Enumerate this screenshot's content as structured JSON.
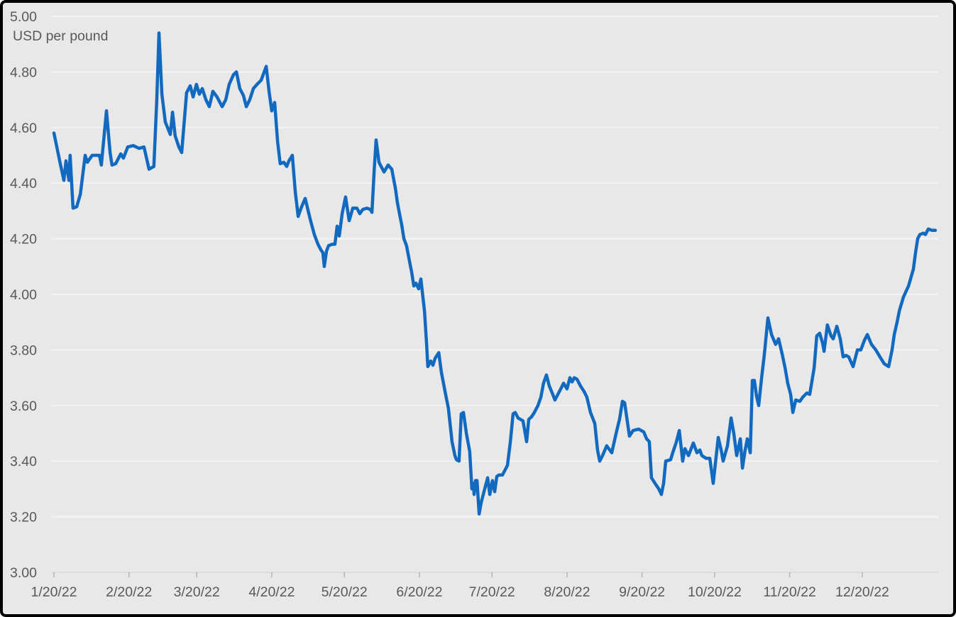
{
  "chart_data": {
    "type": "line",
    "title": "",
    "ylabel": "USD per pound",
    "xlabel": "",
    "grid": true,
    "legend": "none",
    "ylim": [
      3.0,
      5.0
    ],
    "x_axis_kind": "date",
    "x_range_days": [
      0,
      365.5
    ],
    "y_ticks": [
      {
        "label": "5.00",
        "value": 5.0
      },
      {
        "label": "4.80",
        "value": 4.8
      },
      {
        "label": "4.60",
        "value": 4.6
      },
      {
        "label": "4.40",
        "value": 4.4
      },
      {
        "label": "4.20",
        "value": 4.2
      },
      {
        "label": "4.00",
        "value": 4.0
      },
      {
        "label": "3.80",
        "value": 3.8
      },
      {
        "label": "3.60",
        "value": 3.6
      },
      {
        "label": "3.40",
        "value": 3.4
      },
      {
        "label": "3.20",
        "value": 3.2
      },
      {
        "label": "3.00",
        "value": 3.0
      }
    ],
    "x_ticks": [
      {
        "label": "1/20/22",
        "day": 0
      },
      {
        "label": "2/20/22",
        "day": 31
      },
      {
        "label": "3/20/22",
        "day": 59
      },
      {
        "label": "4/20/22",
        "day": 90
      },
      {
        "label": "5/20/22",
        "day": 120
      },
      {
        "label": "6/20/22",
        "day": 151
      },
      {
        "label": "7/20/22",
        "day": 181
      },
      {
        "label": "8/20/22",
        "day": 212
      },
      {
        "label": "9/20/22",
        "day": 243
      },
      {
        "label": "10/20/22",
        "day": 273
      },
      {
        "label": "11/20/22",
        "day": 304
      },
      {
        "label": "12/20/22",
        "day": 334
      }
    ],
    "series": [
      {
        "name": "USD per pound",
        "color": "#1169c0",
        "points": [
          [
            0,
            4.58
          ],
          [
            2.6,
            4.47
          ],
          [
            4.1,
            4.41
          ],
          [
            5,
            4.48
          ],
          [
            6.2,
            4.41
          ],
          [
            6.7,
            4.5
          ],
          [
            7.9,
            4.31
          ],
          [
            9.4,
            4.315
          ],
          [
            10.9,
            4.36
          ],
          [
            12.9,
            4.5
          ],
          [
            13.8,
            4.475
          ],
          [
            15.8,
            4.5
          ],
          [
            18.8,
            4.5
          ],
          [
            19.6,
            4.465
          ],
          [
            21.7,
            4.66
          ],
          [
            23.2,
            4.51
          ],
          [
            24,
            4.465
          ],
          [
            25.5,
            4.47
          ],
          [
            27.6,
            4.505
          ],
          [
            28.7,
            4.49
          ],
          [
            30.5,
            4.53
          ],
          [
            32.8,
            4.535
          ],
          [
            35.2,
            4.525
          ],
          [
            37.2,
            4.53
          ],
          [
            39.3,
            4.45
          ],
          [
            41.3,
            4.46
          ],
          [
            42.5,
            4.7
          ],
          [
            43.4,
            4.94
          ],
          [
            44.6,
            4.72
          ],
          [
            46,
            4.62
          ],
          [
            48.1,
            4.575
          ],
          [
            49,
            4.655
          ],
          [
            50.1,
            4.57
          ],
          [
            51.6,
            4.53
          ],
          [
            52.8,
            4.51
          ],
          [
            54.8,
            4.725
          ],
          [
            56.3,
            4.75
          ],
          [
            57.5,
            4.71
          ],
          [
            58.9,
            4.755
          ],
          [
            60.1,
            4.72
          ],
          [
            61.3,
            4.74
          ],
          [
            62.8,
            4.7
          ],
          [
            64.2,
            4.675
          ],
          [
            65.7,
            4.73
          ],
          [
            67.4,
            4.71
          ],
          [
            69.5,
            4.675
          ],
          [
            71,
            4.7
          ],
          [
            72.4,
            4.755
          ],
          [
            74.2,
            4.79
          ],
          [
            75.4,
            4.8
          ],
          [
            76.8,
            4.74
          ],
          [
            78.3,
            4.715
          ],
          [
            79.5,
            4.675
          ],
          [
            80.9,
            4.7
          ],
          [
            82.4,
            4.74
          ],
          [
            83.9,
            4.755
          ],
          [
            85.6,
            4.77
          ],
          [
            87.7,
            4.82
          ],
          [
            88.9,
            4.73
          ],
          [
            90,
            4.66
          ],
          [
            91.2,
            4.69
          ],
          [
            92.4,
            4.55
          ],
          [
            93.5,
            4.47
          ],
          [
            95,
            4.475
          ],
          [
            96.2,
            4.46
          ],
          [
            97.1,
            4.48
          ],
          [
            98.5,
            4.5
          ],
          [
            99.7,
            4.37
          ],
          [
            100.9,
            4.28
          ],
          [
            102.1,
            4.31
          ],
          [
            103.8,
            4.345
          ],
          [
            105.9,
            4.27
          ],
          [
            107.6,
            4.215
          ],
          [
            109.1,
            4.18
          ],
          [
            110.3,
            4.16
          ],
          [
            111.1,
            4.15
          ],
          [
            111.7,
            4.1
          ],
          [
            112.6,
            4.155
          ],
          [
            113.5,
            4.175
          ],
          [
            115,
            4.18
          ],
          [
            116.1,
            4.18
          ],
          [
            117,
            4.245
          ],
          [
            117.9,
            4.21
          ],
          [
            119.1,
            4.29
          ],
          [
            120.5,
            4.35
          ],
          [
            122,
            4.265
          ],
          [
            123.5,
            4.31
          ],
          [
            125.2,
            4.31
          ],
          [
            126.4,
            4.29
          ],
          [
            127.6,
            4.305
          ],
          [
            129.3,
            4.31
          ],
          [
            130.8,
            4.305
          ],
          [
            131.4,
            4.295
          ],
          [
            132.3,
            4.44
          ],
          [
            133.1,
            4.555
          ],
          [
            134.3,
            4.475
          ],
          [
            135.2,
            4.46
          ],
          [
            136.4,
            4.44
          ],
          [
            138.1,
            4.465
          ],
          [
            139.6,
            4.45
          ],
          [
            141.1,
            4.38
          ],
          [
            141.9,
            4.33
          ],
          [
            142.8,
            4.29
          ],
          [
            143.7,
            4.25
          ],
          [
            144.6,
            4.2
          ],
          [
            145.7,
            4.175
          ],
          [
            146.9,
            4.12
          ],
          [
            147.8,
            4.08
          ],
          [
            148.7,
            4.03
          ],
          [
            149.6,
            4.04
          ],
          [
            150.7,
            4.02
          ],
          [
            151.6,
            4.055
          ],
          [
            153.1,
            3.94
          ],
          [
            154,
            3.82
          ],
          [
            154.5,
            3.74
          ],
          [
            155.7,
            3.76
          ],
          [
            156.6,
            3.745
          ],
          [
            157.5,
            3.77
          ],
          [
            159,
            3.79
          ],
          [
            160.1,
            3.72
          ],
          [
            161.6,
            3.65
          ],
          [
            163,
            3.59
          ],
          [
            164.5,
            3.47
          ],
          [
            165.7,
            3.42
          ],
          [
            166.3,
            3.405
          ],
          [
            167.4,
            3.4
          ],
          [
            168.3,
            3.57
          ],
          [
            169.2,
            3.575
          ],
          [
            170.4,
            3.5
          ],
          [
            171.8,
            3.435
          ],
          [
            172.7,
            3.3
          ],
          [
            173.3,
            3.32
          ],
          [
            173.6,
            3.28
          ],
          [
            174.2,
            3.33
          ],
          [
            174.8,
            3.33
          ],
          [
            175.7,
            3.21
          ],
          [
            176.5,
            3.25
          ],
          [
            177.1,
            3.27
          ],
          [
            178.3,
            3.31
          ],
          [
            179.2,
            3.34
          ],
          [
            180.1,
            3.28
          ],
          [
            181.2,
            3.33
          ],
          [
            182.1,
            3.29
          ],
          [
            183,
            3.345
          ],
          [
            183.9,
            3.35
          ],
          [
            185.3,
            3.35
          ],
          [
            186.5,
            3.37
          ],
          [
            187.4,
            3.385
          ],
          [
            188.6,
            3.47
          ],
          [
            189.7,
            3.57
          ],
          [
            190.6,
            3.575
          ],
          [
            191.8,
            3.555
          ],
          [
            193.8,
            3.545
          ],
          [
            195.3,
            3.47
          ],
          [
            196.2,
            3.55
          ],
          [
            197.4,
            3.56
          ],
          [
            198.5,
            3.575
          ],
          [
            200,
            3.6
          ],
          [
            201.2,
            3.63
          ],
          [
            202.3,
            3.68
          ],
          [
            203.5,
            3.71
          ],
          [
            204.7,
            3.67
          ],
          [
            205.9,
            3.645
          ],
          [
            207,
            3.62
          ],
          [
            208.2,
            3.64
          ],
          [
            209.4,
            3.66
          ],
          [
            210.6,
            3.68
          ],
          [
            212,
            3.66
          ],
          [
            213.2,
            3.7
          ],
          [
            214.1,
            3.685
          ],
          [
            215,
            3.7
          ],
          [
            216.1,
            3.695
          ],
          [
            217.6,
            3.67
          ],
          [
            219.1,
            3.65
          ],
          [
            220.2,
            3.63
          ],
          [
            221.7,
            3.575
          ],
          [
            223.5,
            3.535
          ],
          [
            224.6,
            3.44
          ],
          [
            225.5,
            3.4
          ],
          [
            226.7,
            3.42
          ],
          [
            228.4,
            3.455
          ],
          [
            230.5,
            3.43
          ],
          [
            232.3,
            3.5
          ],
          [
            233.7,
            3.55
          ],
          [
            234.9,
            3.615
          ],
          [
            235.8,
            3.61
          ],
          [
            237.8,
            3.49
          ],
          [
            239.3,
            3.51
          ],
          [
            241.6,
            3.515
          ],
          [
            243.7,
            3.505
          ],
          [
            244.9,
            3.48
          ],
          [
            246,
            3.47
          ],
          [
            246.9,
            3.34
          ],
          [
            248.4,
            3.32
          ],
          [
            249.9,
            3.3
          ],
          [
            251,
            3.28
          ],
          [
            251.9,
            3.32
          ],
          [
            252.8,
            3.4
          ],
          [
            254.8,
            3.405
          ],
          [
            255.7,
            3.43
          ],
          [
            257.2,
            3.47
          ],
          [
            258.4,
            3.51
          ],
          [
            259.8,
            3.4
          ],
          [
            260.7,
            3.445
          ],
          [
            262.2,
            3.42
          ],
          [
            264.2,
            3.465
          ],
          [
            265.7,
            3.43
          ],
          [
            266.9,
            3.44
          ],
          [
            267.7,
            3.42
          ],
          [
            269.5,
            3.41
          ],
          [
            271,
            3.41
          ],
          [
            272.4,
            3.32
          ],
          [
            274.5,
            3.485
          ],
          [
            275.7,
            3.44
          ],
          [
            276.5,
            3.4
          ],
          [
            278.3,
            3.455
          ],
          [
            279.8,
            3.555
          ],
          [
            280.9,
            3.5
          ],
          [
            282.1,
            3.42
          ],
          [
            283.6,
            3.48
          ],
          [
            284.5,
            3.375
          ],
          [
            285.6,
            3.44
          ],
          [
            286.5,
            3.48
          ],
          [
            287.7,
            3.43
          ],
          [
            288.6,
            3.69
          ],
          [
            289.4,
            3.69
          ],
          [
            290.3,
            3.635
          ],
          [
            291.2,
            3.6
          ],
          [
            292.4,
            3.7
          ],
          [
            293.5,
            3.78
          ],
          [
            295,
            3.915
          ],
          [
            296.5,
            3.855
          ],
          [
            298.2,
            3.82
          ],
          [
            299.4,
            3.84
          ],
          [
            300.9,
            3.785
          ],
          [
            302.1,
            3.735
          ],
          [
            303.2,
            3.68
          ],
          [
            304.4,
            3.64
          ],
          [
            305.3,
            3.575
          ],
          [
            306.5,
            3.62
          ],
          [
            308.2,
            3.615
          ],
          [
            309.4,
            3.63
          ],
          [
            311.1,
            3.645
          ],
          [
            312.3,
            3.64
          ],
          [
            314.1,
            3.735
          ],
          [
            315.2,
            3.85
          ],
          [
            316.4,
            3.86
          ],
          [
            317.6,
            3.825
          ],
          [
            318.2,
            3.795
          ],
          [
            319.6,
            3.89
          ],
          [
            321.1,
            3.85
          ],
          [
            322,
            3.84
          ],
          [
            323.5,
            3.885
          ],
          [
            324.9,
            3.84
          ],
          [
            326.1,
            3.775
          ],
          [
            327.3,
            3.78
          ],
          [
            328.4,
            3.775
          ],
          [
            330.2,
            3.74
          ],
          [
            332,
            3.8
          ],
          [
            333.4,
            3.8
          ],
          [
            334.9,
            3.835
          ],
          [
            336.1,
            3.855
          ],
          [
            337.8,
            3.82
          ],
          [
            339.6,
            3.8
          ],
          [
            341.3,
            3.775
          ],
          [
            343.1,
            3.75
          ],
          [
            344.9,
            3.74
          ],
          [
            346.3,
            3.8
          ],
          [
            347.2,
            3.855
          ],
          [
            348.4,
            3.9
          ],
          [
            349.3,
            3.94
          ],
          [
            351,
            3.99
          ],
          [
            353.1,
            4.03
          ],
          [
            355.1,
            4.09
          ],
          [
            356,
            4.15
          ],
          [
            356.9,
            4.2
          ],
          [
            357.8,
            4.215
          ],
          [
            359.2,
            4.22
          ],
          [
            360.1,
            4.215
          ],
          [
            361.3,
            4.235
          ],
          [
            362.8,
            4.23
          ],
          [
            364.2,
            4.23
          ]
        ]
      }
    ],
    "colors": {
      "background": "#e9e8e8",
      "gridline": "#f5f4f3",
      "axis_line": "#d6d5d4",
      "tick_mark": "#b5b5b5",
      "label_text": "#595959",
      "frame_border": "#000000",
      "line": "#1169c0"
    }
  }
}
